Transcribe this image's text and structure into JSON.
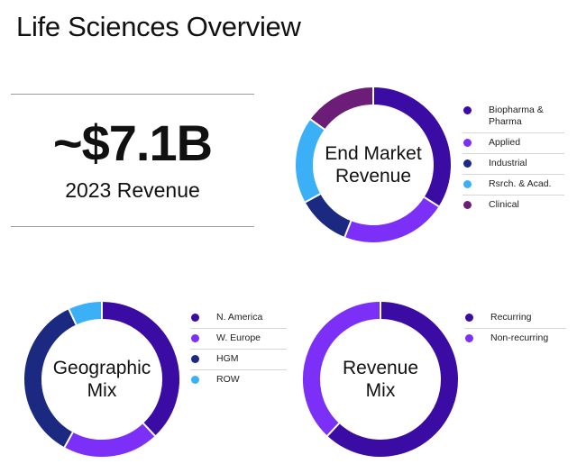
{
  "page": {
    "title": "Life Sciences Overview"
  },
  "headline": {
    "value": "~$7.1B",
    "label": "2023 Revenue"
  },
  "chart_data": [
    {
      "type": "pie",
      "id": "end-market",
      "title": "End Market Revenue",
      "title_lines": [
        "End Market",
        "Revenue"
      ],
      "categories": [
        "Biopharma & Pharma",
        "Applied",
        "Industrial",
        "Rsrch. & Acad.",
        "Clinical"
      ],
      "legend_lines": [
        [
          "Biopharma &",
          "Pharma"
        ],
        [
          "Applied"
        ],
        [
          "Industrial"
        ],
        [
          "Rsrch. & Acad."
        ],
        [
          "Clinical"
        ]
      ],
      "values": [
        34,
        22,
        11,
        18,
        15
      ],
      "colors": [
        "#3a0ca3",
        "#7b2ff7",
        "#1b2a80",
        "#3bb0f6",
        "#6c1d78"
      ]
    },
    {
      "type": "pie",
      "id": "geographic",
      "title": "Geographic Mix",
      "title_lines": [
        "Geographic",
        "Mix"
      ],
      "categories": [
        "N. America",
        "W. Europe",
        "HGM",
        "ROW"
      ],
      "legend_lines": [
        [
          "N. America"
        ],
        [
          "W. Europe"
        ],
        [
          "HGM"
        ],
        [
          "ROW"
        ]
      ],
      "values": [
        38,
        20,
        35,
        7
      ],
      "colors": [
        "#3a0ca3",
        "#7b2ff7",
        "#1b2a80",
        "#3bb0f6"
      ]
    },
    {
      "type": "pie",
      "id": "revenue-mix",
      "title": "Revenue Mix",
      "title_lines": [
        "Revenue",
        "Mix"
      ],
      "categories": [
        "Recurring",
        "Non-recurring"
      ],
      "legend_lines": [
        [
          "Recurring"
        ],
        [
          "Non-recurring"
        ]
      ],
      "values": [
        62,
        38
      ],
      "colors": [
        "#3a0ca3",
        "#7b2ff7"
      ]
    }
  ]
}
